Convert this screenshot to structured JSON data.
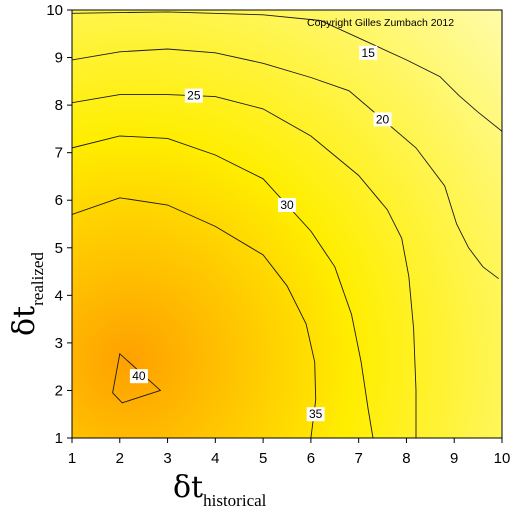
{
  "chart_data": {
    "type": "heatmap",
    "subtype": "filled contour",
    "copyright": "Copyright Gilles Zumbach 2012",
    "xlabel": {
      "symbol": "δt",
      "subscript": "historical"
    },
    "ylabel": {
      "symbol": "δt",
      "subscript": "realized"
    },
    "xlim": [
      1,
      10
    ],
    "ylim": [
      1,
      10
    ],
    "x_ticks": [
      "1",
      "2",
      "3",
      "4",
      "5",
      "6",
      "7",
      "8",
      "9",
      "10"
    ],
    "y_ticks": [
      "1",
      "2",
      "3",
      "4",
      "5",
      "6",
      "7",
      "8",
      "9",
      "10"
    ],
    "grid": false,
    "colormap": {
      "low": "#ffffc8",
      "mid": "#ffee00",
      "high": "#ffa000"
    },
    "peak": {
      "x": 2.2,
      "y": 2.6,
      "value": 41
    },
    "contours": [
      {
        "level": 15,
        "label": "15",
        "label_at": [
          7.2,
          9.1
        ],
        "points": [
          [
            1.0,
            9.93
          ],
          [
            3.0,
            9.96
          ],
          [
            5.0,
            9.9
          ],
          [
            6.2,
            9.78
          ],
          [
            7.2,
            9.32
          ],
          [
            8.0,
            8.95
          ],
          [
            8.7,
            8.6
          ],
          [
            9.1,
            8.2
          ],
          [
            9.5,
            7.85
          ],
          [
            10.0,
            7.45
          ]
        ]
      },
      {
        "level": 20,
        "label": "20",
        "label_at": [
          7.5,
          7.7
        ],
        "points": [
          [
            1.0,
            8.95
          ],
          [
            2.0,
            9.12
          ],
          [
            3.0,
            9.18
          ],
          [
            4.0,
            9.1
          ],
          [
            5.0,
            8.88
          ],
          [
            6.0,
            8.58
          ],
          [
            6.8,
            8.3
          ],
          [
            7.5,
            7.7
          ],
          [
            8.2,
            7.1
          ],
          [
            8.8,
            6.3
          ],
          [
            9.05,
            5.5
          ],
          [
            9.3,
            5.0
          ],
          [
            9.6,
            4.6
          ],
          [
            9.93,
            4.35
          ]
        ]
      },
      {
        "level": 25,
        "label": "25",
        "label_at": [
          3.55,
          8.2
        ],
        "points": [
          [
            1.0,
            8.05
          ],
          [
            2.0,
            8.22
          ],
          [
            3.0,
            8.22
          ],
          [
            4.0,
            8.18
          ],
          [
            5.0,
            7.92
          ],
          [
            6.0,
            7.35
          ],
          [
            7.0,
            6.52
          ],
          [
            7.6,
            5.8
          ],
          [
            7.9,
            5.2
          ],
          [
            8.05,
            4.4
          ],
          [
            8.15,
            3.3
          ],
          [
            8.2,
            2.0
          ],
          [
            8.2,
            1.0
          ]
        ]
      },
      {
        "level": 30,
        "label": "30",
        "label_at": [
          5.5,
          5.9
        ],
        "points": [
          [
            1.0,
            7.1
          ],
          [
            2.0,
            7.35
          ],
          [
            3.0,
            7.3
          ],
          [
            4.0,
            6.95
          ],
          [
            5.0,
            6.45
          ],
          [
            5.5,
            5.9
          ],
          [
            6.0,
            5.35
          ],
          [
            6.5,
            4.6
          ],
          [
            6.85,
            3.6
          ],
          [
            7.05,
            2.6
          ],
          [
            7.2,
            1.6
          ],
          [
            7.3,
            1.0
          ]
        ]
      },
      {
        "level": 35,
        "label": "35",
        "label_at": [
          6.1,
          1.5
        ],
        "points": [
          [
            1.0,
            5.7
          ],
          [
            2.0,
            6.05
          ],
          [
            3.0,
            5.9
          ],
          [
            4.0,
            5.45
          ],
          [
            5.0,
            4.85
          ],
          [
            5.5,
            4.2
          ],
          [
            5.9,
            3.4
          ],
          [
            6.08,
            2.6
          ],
          [
            6.1,
            1.8
          ],
          [
            6.0,
            1.0
          ]
        ]
      },
      {
        "level": 40,
        "label": "40",
        "label_at": [
          2.4,
          2.3
        ],
        "closed": true,
        "points": [
          [
            2.0,
            2.77
          ],
          [
            2.85,
            2.0
          ],
          [
            2.05,
            1.74
          ],
          [
            1.85,
            1.95
          ]
        ]
      }
    ]
  }
}
